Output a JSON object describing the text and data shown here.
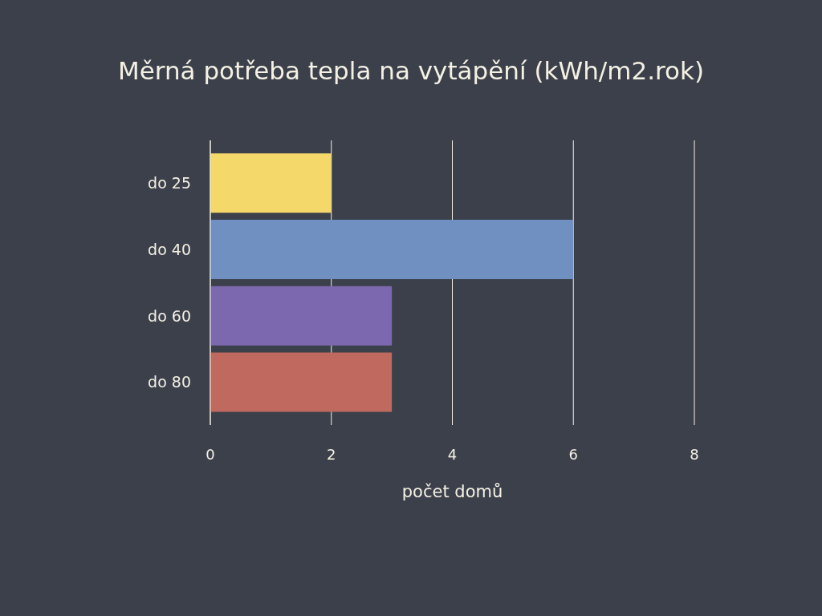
{
  "chart_data": {
    "type": "bar",
    "orientation": "horizontal",
    "title": "Měrná potřeba tepla na vytápění (kWh/m2.rok)",
    "xlabel": "počet domů",
    "categories": [
      "do 25",
      "do 40",
      "do 60",
      "do 80"
    ],
    "values": [
      2,
      6,
      3,
      3
    ],
    "colors": [
      "#f5d86a",
      "#7090c2",
      "#7c68ae",
      "#c0695f"
    ],
    "xlim": [
      0,
      8
    ],
    "xticks": [
      0,
      2,
      4,
      6,
      8
    ],
    "grid": "x"
  }
}
